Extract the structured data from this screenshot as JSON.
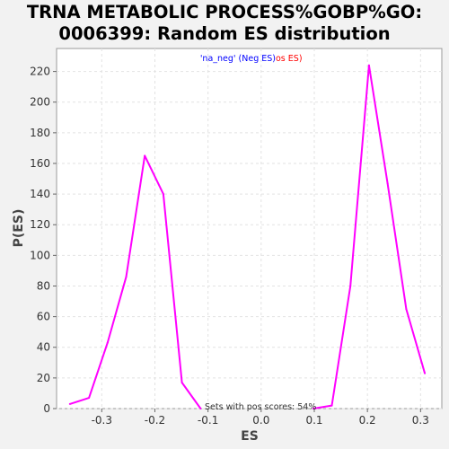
{
  "chart_data": {
    "type": "line",
    "title_line1": "TRNA METABOLIC PROCESS%GOBP%GO:",
    "title_line2": "0006399: Random ES distribution",
    "xlabel": "ES",
    "ylabel": "P(ES)",
    "xlim": [
      -0.385,
      0.34
    ],
    "ylim": [
      0,
      235
    ],
    "xticks": [
      -0.3,
      -0.2,
      -0.1,
      0.0,
      0.1,
      0.2,
      0.3
    ],
    "xtick_labels": [
      "-0.3",
      "-0.2",
      "-0.1",
      "0.0",
      "0.1",
      "0.2",
      "0.3"
    ],
    "yticks": [
      0,
      20,
      40,
      60,
      80,
      100,
      120,
      140,
      160,
      180,
      200,
      220
    ],
    "ytick_labels": [
      "0",
      "20",
      "40",
      "60",
      "80",
      "100",
      "120",
      "140",
      "160",
      "180",
      "200",
      "220"
    ],
    "grid": true,
    "legend_placement": "top-center",
    "legend": {
      "neg_label": "'na_neg' (Neg ES)",
      "pos_label": "'na_pos' (Pos ES)",
      "pos_label_visible": "os ES)",
      "neg_color": "#0000ff",
      "pos_color": "#ff0000"
    },
    "annotation": "Sets with pos scores: 54%",
    "series": [
      {
        "color": "#ff00ff",
        "x": [
          -0.36,
          -0.324,
          -0.289,
          -0.254,
          -0.219,
          -0.184,
          -0.149,
          -0.114
        ],
        "y": [
          3,
          7,
          43,
          86,
          165,
          140,
          17,
          0
        ]
      },
      {
        "color": "#ff00ff",
        "x": [
          0.098,
          0.133,
          0.168,
          0.203,
          0.238,
          0.273,
          0.308
        ],
        "y": [
          0,
          2,
          80,
          224,
          147,
          65,
          23
        ]
      }
    ]
  }
}
